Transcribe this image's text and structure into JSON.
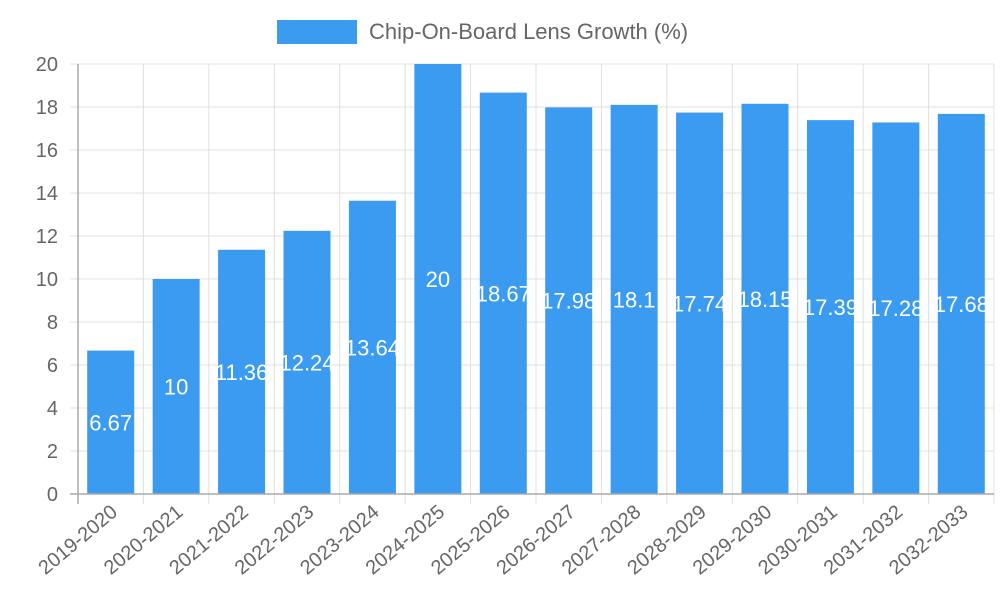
{
  "chart_data": {
    "type": "bar",
    "title": "",
    "categories": [
      "2019-2020",
      "2020-2021",
      "2021-2022",
      "2022-2023",
      "2023-2024",
      "2024-2025",
      "2025-2026",
      "2026-2027",
      "2027-2028",
      "2028-2029",
      "2029-2030",
      "2030-2031",
      "2031-2032",
      "2032-2033"
    ],
    "series": [
      {
        "name": "Chip-On-Board Lens Growth (%)",
        "values": [
          6.67,
          10,
          11.36,
          12.24,
          13.64,
          20,
          18.67,
          17.98,
          18.1,
          17.74,
          18.15,
          17.39,
          17.28,
          17.68
        ],
        "color": "#3a9bf0"
      }
    ],
    "value_labels": [
      "6.67",
      "10",
      "11.36",
      "12.24",
      "13.64",
      "20",
      "18.67",
      "17.98",
      "18.1",
      "17.74",
      "18.15",
      "17.39",
      "17.28",
      "17.68"
    ],
    "xlabel": "",
    "ylabel": "",
    "ylim": [
      0,
      20
    ],
    "yticks": [
      0,
      2,
      4,
      6,
      8,
      10,
      12,
      14,
      16,
      18,
      20
    ],
    "grid": true,
    "legend_position": "top"
  },
  "legend": {
    "label": "Chip-On-Board Lens Growth (%)",
    "color": "#3a9bf0"
  }
}
